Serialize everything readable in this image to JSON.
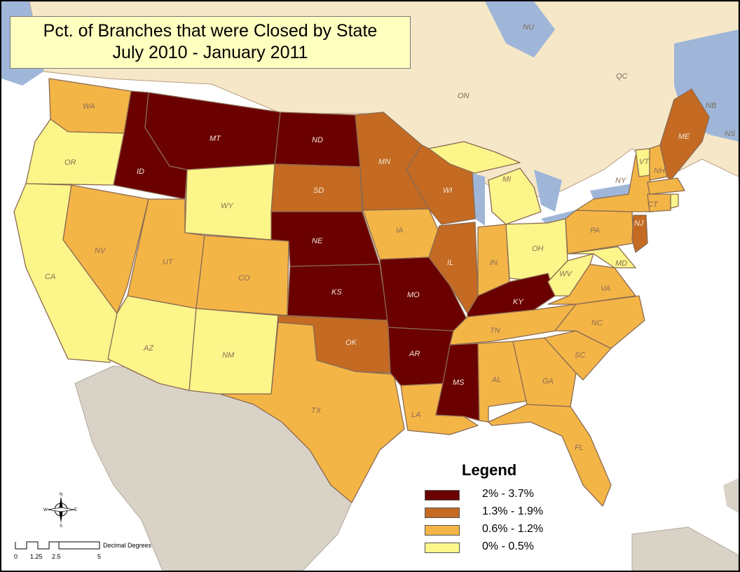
{
  "title": {
    "line1": "Pct. of Branches that were Closed by State",
    "line2": "July 2010 - January 2011"
  },
  "legend": {
    "title": "Legend",
    "items": [
      {
        "label": "2% - 3.7%",
        "color": "#6b0000"
      },
      {
        "label": "1.3% - 1.9%",
        "color": "#c46a22"
      },
      {
        "label": "0.6% - 1.2%",
        "color": "#f4b547"
      },
      {
        "label": "0% - 0.5%",
        "color": "#fcf58a"
      }
    ]
  },
  "provinces": {
    "nu": "NU",
    "qc": "QC",
    "on": "ON",
    "nb": "NB",
    "ns": "NS"
  },
  "states": {
    "wa": "WA",
    "or": "OR",
    "ca": "CA",
    "id": "ID",
    "nv": "NV",
    "mt": "MT",
    "wy": "WY",
    "ut": "UT",
    "co": "CO",
    "az": "AZ",
    "nm": "NM",
    "nd": "ND",
    "sd": "SD",
    "ne": "NE",
    "ks": "KS",
    "ok": "OK",
    "tx": "TX",
    "mn": "MN",
    "ia": "IA",
    "mo": "MO",
    "ar": "AR",
    "la": "LA",
    "wi": "WI",
    "il": "IL",
    "mi": "MI",
    "in": "IN",
    "oh": "OH",
    "ky": "KY",
    "tn": "TN",
    "ms": "MS",
    "al": "AL",
    "ga": "GA",
    "fl": "FL",
    "sc": "SC",
    "nc": "NC",
    "va": "VA",
    "wv": "WV",
    "md": "MD",
    "pa": "PA",
    "ny": "NY",
    "vt": "VT",
    "nh": "NH",
    "me": "ME",
    "ct": "CT",
    "nj": "NJ"
  },
  "scale_bar": {
    "unit_label": "Decimal Degrees",
    "ticks": [
      "0",
      "1.25",
      "2.5",
      "5"
    ]
  },
  "compass": {
    "n": "N",
    "s": "S",
    "e": "E",
    "w": "W"
  }
}
